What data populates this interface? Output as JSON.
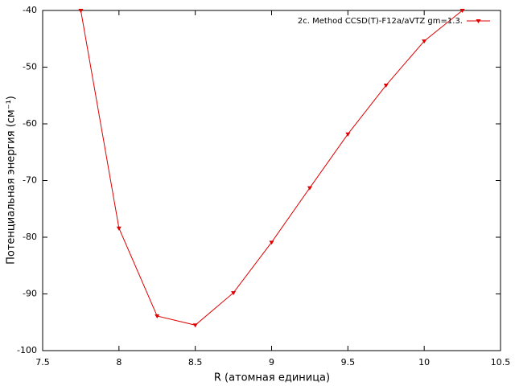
{
  "chart_data": {
    "type": "line",
    "xlabel": "R (атомная единица)",
    "ylabel": "Потенциальная энергия (см⁻¹)",
    "x": [
      7.75,
      8,
      8.25,
      8.5,
      8.75,
      9,
      9.25,
      9.5,
      9.75,
      10,
      10.25
    ],
    "series": [
      {
        "name": "2c. Method CCSD(T)-F12a/aVTZ gm=1.3.",
        "color": "#e00000",
        "values": [
          -40,
          -78.4,
          -93.9,
          -95.5,
          -89.8,
          -80.9,
          -71.3,
          -61.8,
          -53.2,
          -45.4,
          -40
        ]
      }
    ],
    "xlim": [
      7.5,
      10.5
    ],
    "xticks": [
      7.5,
      8,
      8.5,
      9,
      9.5,
      10,
      10.5
    ],
    "ylim": [
      -100,
      -40
    ],
    "yticks": [
      -100,
      -90,
      -80,
      -70,
      -60,
      -50,
      -40
    ],
    "legend": "top-right"
  }
}
